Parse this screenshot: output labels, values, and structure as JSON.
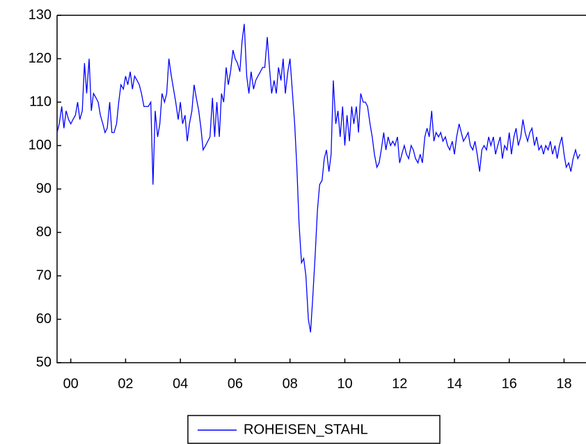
{
  "chart_data": {
    "type": "line",
    "x": [
      2000,
      2000.08,
      2000.17,
      2000.25,
      2000.33,
      2000.42,
      2000.5,
      2000.58,
      2000.67,
      2000.75,
      2000.83,
      2000.92,
      2001,
      2001.08,
      2001.17,
      2001.25,
      2001.33,
      2001.42,
      2001.5,
      2001.58,
      2001.67,
      2001.75,
      2001.83,
      2001.92,
      2002,
      2002.08,
      2002.17,
      2002.25,
      2002.33,
      2002.42,
      2002.5,
      2002.58,
      2002.67,
      2002.75,
      2002.83,
      2002.92,
      2003,
      2003.08,
      2003.17,
      2003.25,
      2003.33,
      2003.42,
      2003.5,
      2003.58,
      2003.67,
      2003.75,
      2003.83,
      2003.92,
      2004,
      2004.08,
      2004.17,
      2004.25,
      2004.33,
      2004.42,
      2004.5,
      2004.58,
      2004.67,
      2004.75,
      2004.83,
      2004.92,
      2005,
      2005.08,
      2005.17,
      2005.25,
      2005.33,
      2005.42,
      2005.5,
      2005.58,
      2005.67,
      2005.75,
      2005.83,
      2005.92,
      2006,
      2006.08,
      2006.17,
      2006.25,
      2006.33,
      2006.42,
      2006.5,
      2006.58,
      2006.67,
      2006.75,
      2006.83,
      2006.92,
      2007,
      2007.08,
      2007.17,
      2007.25,
      2007.33,
      2007.42,
      2007.5,
      2007.58,
      2007.67,
      2007.75,
      2007.83,
      2007.92,
      2008,
      2008.08,
      2008.17,
      2008.25,
      2008.33,
      2008.42,
      2008.5,
      2008.58,
      2008.67,
      2008.75,
      2008.83,
      2008.92,
      2009,
      2009.08,
      2009.17,
      2009.25,
      2009.33,
      2009.42,
      2009.5,
      2009.58,
      2009.67,
      2009.75,
      2009.83,
      2009.92,
      2010,
      2010.08,
      2010.17,
      2010.25,
      2010.33,
      2010.42,
      2010.5,
      2010.58,
      2010.67,
      2010.75,
      2010.83,
      2010.92,
      2011,
      2011.08,
      2011.17,
      2011.25,
      2011.33,
      2011.42,
      2011.5,
      2011.58,
      2011.67,
      2011.75,
      2011.83,
      2011.92,
      2012,
      2012.08,
      2012.17,
      2012.25,
      2012.33,
      2012.42,
      2012.5,
      2012.58,
      2012.67,
      2012.75,
      2012.83,
      2012.92,
      2013,
      2013.08,
      2013.17,
      2013.25,
      2013.33,
      2013.42,
      2013.5,
      2013.58,
      2013.67,
      2013.75,
      2013.83,
      2013.92,
      2014,
      2014.08,
      2014.17,
      2014.25,
      2014.33,
      2014.42,
      2014.5,
      2014.58,
      2014.67,
      2014.75,
      2014.83,
      2014.92,
      2015,
      2015.08,
      2015.17,
      2015.25,
      2015.33,
      2015.42,
      2015.5,
      2015.58,
      2015.67,
      2015.75,
      2015.83,
      2015.92,
      2016,
      2016.08,
      2016.17,
      2016.25,
      2016.33,
      2016.42,
      2016.5,
      2016.58,
      2016.67,
      2016.75,
      2016.83,
      2016.92,
      2017,
      2017.08,
      2017.17,
      2017.25,
      2017.33,
      2017.42,
      2017.5,
      2017.58,
      2017.67,
      2017.75,
      2017.83,
      2017.92,
      2018,
      2018.08,
      2018.17,
      2018.25,
      2018.33,
      2018.42,
      2018.5,
      2018.58,
      2018.67,
      2018.75,
      2018.83,
      2018.92,
      2019,
      2019.08
    ],
    "series": [
      {
        "name": "ROHEISEN_STAHL",
        "color": "#0000ff",
        "values": [
          103,
          105,
          109,
          104,
          108,
          106,
          105,
          106,
          107,
          110,
          106,
          108,
          119,
          112,
          120,
          108,
          112,
          111,
          110,
          107,
          105,
          103,
          104,
          110,
          103,
          103,
          105,
          110,
          114,
          113,
          116,
          114,
          117,
          113,
          116,
          115,
          114,
          112,
          109,
          109,
          109,
          110,
          91,
          108,
          102,
          105,
          112,
          110,
          112,
          120,
          116,
          113,
          110,
          106,
          110,
          105,
          107,
          101,
          105,
          108,
          114,
          111,
          108,
          104,
          99,
          100,
          101,
          102,
          111,
          102,
          110,
          102,
          112,
          110,
          118,
          114,
          117,
          122,
          120,
          119,
          117,
          124,
          128,
          116,
          112,
          117,
          113,
          115,
          116,
          117,
          118,
          118,
          125,
          118,
          112,
          115,
          112,
          118,
          115,
          120,
          112,
          117,
          120,
          113,
          105,
          95,
          82,
          73,
          74,
          70,
          60,
          57,
          65,
          75,
          85,
          91,
          92,
          97,
          99,
          94,
          98,
          115,
          105,
          108,
          102,
          109,
          100,
          107,
          101,
          109,
          105,
          109,
          103,
          112,
          110,
          110,
          109,
          105,
          102,
          98,
          95,
          96,
          99,
          103,
          99,
          102,
          100,
          101,
          100,
          102,
          96,
          98,
          100,
          98,
          97,
          100,
          99,
          97,
          96,
          98,
          96,
          102,
          104,
          102,
          108,
          101,
          103,
          102,
          103,
          101,
          102,
          100,
          99,
          101,
          98,
          102,
          105,
          103,
          101,
          102,
          103,
          100,
          99,
          101,
          98,
          94,
          99,
          100,
          99,
          102,
          100,
          102,
          98,
          100,
          102,
          97,
          100,
          99,
          103,
          98,
          102,
          104,
          100,
          102,
          106,
          103,
          101,
          103,
          104,
          100,
          102,
          99,
          100,
          98,
          100,
          99,
          101,
          98,
          100,
          97,
          100,
          102,
          98,
          95,
          96,
          94,
          97,
          99,
          97,
          98
        ]
      }
    ],
    "xlim": [
      2000,
      2019.25
    ],
    "xticks": [
      {
        "value": 2000.5,
        "label": "00"
      },
      {
        "value": 2002.5,
        "label": "02"
      },
      {
        "value": 2004.5,
        "label": "04"
      },
      {
        "value": 2006.5,
        "label": "06"
      },
      {
        "value": 2008.5,
        "label": "08"
      },
      {
        "value": 2010.5,
        "label": "10"
      },
      {
        "value": 2012.5,
        "label": "12"
      },
      {
        "value": 2014.5,
        "label": "14"
      },
      {
        "value": 2016.5,
        "label": "16"
      },
      {
        "value": 2018.5,
        "label": "18"
      }
    ],
    "ylim": [
      50,
      130
    ],
    "yticks": [
      50,
      60,
      70,
      80,
      90,
      100,
      110,
      120,
      130
    ],
    "legend": "bottom"
  }
}
